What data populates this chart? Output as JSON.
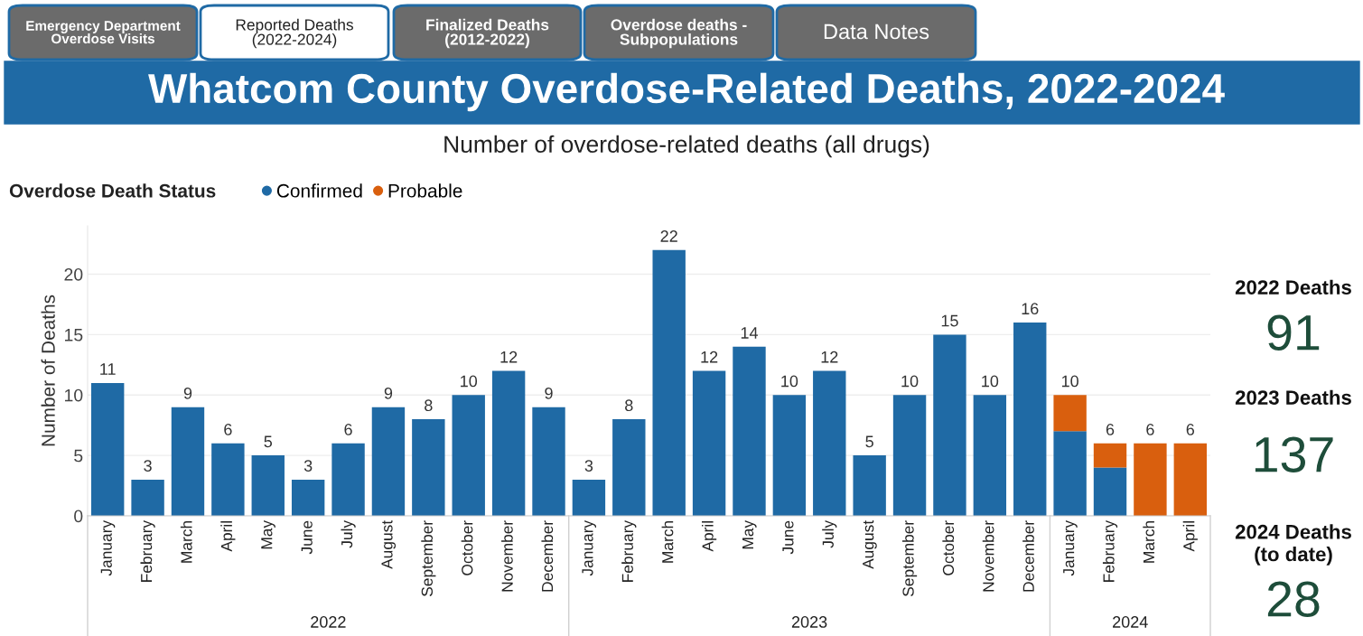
{
  "chart_data": {
    "type": "bar",
    "stacked": true,
    "title": "Whatcom County Overdose-Related Deaths, 2022-2024",
    "subtitle": "Number of overdose-related deaths (all drugs)",
    "ylabel": "Number of Deaths",
    "legend_title": "Overdose Death Status",
    "legend": "top left",
    "categories": [
      "January",
      "February",
      "March",
      "April",
      "May",
      "June",
      "July",
      "August",
      "September",
      "October",
      "November",
      "December",
      "January",
      "February",
      "March",
      "April",
      "May",
      "June",
      "July",
      "August",
      "September",
      "October",
      "November",
      "December",
      "January",
      "February",
      "March",
      "April"
    ],
    "series": [
      {
        "name": "Confirmed",
        "color": "#1f6aa5",
        "values": [
          11,
          3,
          9,
          6,
          5,
          3,
          6,
          9,
          8,
          10,
          12,
          9,
          3,
          8,
          22,
          12,
          14,
          10,
          12,
          5,
          10,
          15,
          10,
          16,
          7,
          4,
          0,
          0
        ]
      },
      {
        "name": "Probable",
        "color": "#d95f0e",
        "values": [
          0,
          0,
          0,
          0,
          0,
          0,
          0,
          0,
          0,
          0,
          0,
          0,
          0,
          0,
          0,
          0,
          0,
          0,
          0,
          0,
          0,
          0,
          0,
          0,
          3,
          2,
          6,
          6
        ]
      }
    ],
    "totals": [
      "11",
      "3",
      "9",
      "6",
      "5",
      "3",
      "6",
      "9",
      "8",
      "10",
      "12",
      "9",
      "3",
      "8",
      "22",
      "12",
      "14",
      "10",
      "12",
      "5",
      "10",
      "15",
      "10",
      "16",
      "10",
      "6",
      "6",
      "6"
    ],
    "ylim": [
      0,
      24
    ],
    "yticks": [
      0,
      5,
      10,
      15,
      20
    ],
    "grid": "y",
    "annotations": [
      "Emergency Department\nOverdose Visits",
      "Reported Deaths\n(2022-2024)",
      "Finalized Deaths\n(2012-2022)",
      "Overdose deaths -\nSubpopulations",
      "Data Notes",
      "2022",
      "2023",
      "2024",
      "2022 Deaths",
      "91",
      "2023 Deaths",
      "137",
      "2024 Deaths\n(to date)",
      "28"
    ]
  }
}
